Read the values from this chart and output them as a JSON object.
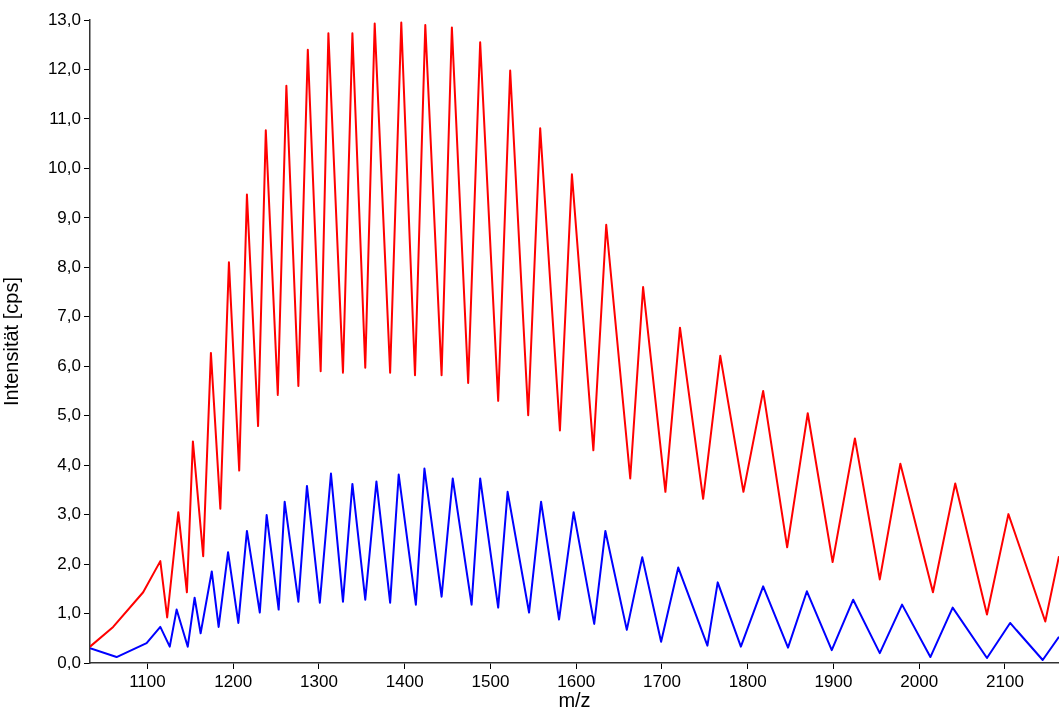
{
  "chart_data": {
    "type": "line",
    "xlabel": "m/z",
    "ylabel": "Intensität [cps]",
    "xlim": [
      1033,
      2163
    ],
    "xticks": [
      1100,
      1200,
      1300,
      1400,
      1500,
      1600,
      1700,
      1800,
      1900,
      2000,
      2100
    ],
    "ylim": [
      0,
      13
    ],
    "yticks": [
      {
        "value": 0,
        "label": "0,0"
      },
      {
        "value": 1,
        "label": "1,0"
      },
      {
        "value": 2,
        "label": "2,0"
      },
      {
        "value": 3,
        "label": "3,0"
      },
      {
        "value": 4,
        "label": "4,0"
      },
      {
        "value": 5,
        "label": "5,0"
      },
      {
        "value": 6,
        "label": "6,0"
      },
      {
        "value": 7,
        "label": "7,0"
      },
      {
        "value": 8,
        "label": "8,0"
      },
      {
        "value": 9,
        "label": "9,0"
      },
      {
        "value": 10,
        "label": "10,0"
      },
      {
        "value": 11,
        "label": "11,0"
      },
      {
        "value": 12,
        "label": "12,0"
      },
      {
        "value": 13,
        "label": "13,0"
      }
    ],
    "grid": false,
    "legend": false,
    "marker": "none",
    "line_style": "solid",
    "series": [
      {
        "color": "#ff0000",
        "x": [
          1033,
          1060,
          1095,
          1115,
          1123,
          1136,
          1146,
          1153,
          1165,
          1174,
          1185,
          1195,
          1207,
          1216,
          1229,
          1238,
          1252,
          1262,
          1276,
          1287,
          1302,
          1311,
          1328,
          1339,
          1354,
          1365,
          1383,
          1396,
          1412,
          1424,
          1443,
          1455,
          1474,
          1488,
          1509,
          1523,
          1544,
          1558,
          1581,
          1595,
          1620,
          1635,
          1663,
          1678,
          1704,
          1721,
          1748,
          1768,
          1795,
          1818,
          1846,
          1870,
          1899,
          1925,
          1954,
          1978,
          2016,
          2042,
          2079,
          2104,
          2147,
          2163
        ],
        "values": [
          0.33,
          0.73,
          1.43,
          2.06,
          0.92,
          3.05,
          1.43,
          4.48,
          2.16,
          6.27,
          3.12,
          8.1,
          3.89,
          9.47,
          4.79,
          10.77,
          5.42,
          11.67,
          5.6,
          12.4,
          5.9,
          12.73,
          5.87,
          12.73,
          5.97,
          12.93,
          5.87,
          12.95,
          5.82,
          12.9,
          5.82,
          12.85,
          5.66,
          12.55,
          5.3,
          11.98,
          5.01,
          10.81,
          4.7,
          9.88,
          4.3,
          8.86,
          3.73,
          7.6,
          3.46,
          6.78,
          3.32,
          6.21,
          3.46,
          5.5,
          2.34,
          5.05,
          2.04,
          4.54,
          1.69,
          4.03,
          1.43,
          3.63,
          0.98,
          3.01,
          0.84,
          2.16
        ]
      },
      {
        "color": "#0000ff",
        "x": [
          1033,
          1064,
          1099,
          1115,
          1126,
          1134,
          1147,
          1155,
          1162,
          1175,
          1183,
          1194,
          1206,
          1216,
          1231,
          1239,
          1253,
          1260,
          1276,
          1286,
          1301,
          1314,
          1328,
          1339,
          1354,
          1367,
          1383,
          1393,
          1413,
          1423,
          1443,
          1456,
          1478,
          1488,
          1509,
          1520,
          1545,
          1559,
          1580,
          1597,
          1621,
          1634,
          1659,
          1677,
          1699,
          1719,
          1753,
          1765,
          1792,
          1818,
          1847,
          1869,
          1898,
          1923,
          1954,
          1980,
          2013,
          2039,
          2079,
          2106,
          2144,
          2163
        ],
        "values": [
          0.3,
          0.12,
          0.4,
          0.73,
          0.33,
          1.08,
          0.33,
          1.32,
          0.6,
          1.85,
          0.73,
          2.24,
          0.81,
          2.67,
          1.02,
          2.99,
          1.08,
          3.26,
          1.24,
          3.58,
          1.22,
          3.83,
          1.24,
          3.62,
          1.28,
          3.67,
          1.22,
          3.81,
          1.18,
          3.93,
          1.34,
          3.73,
          1.18,
          3.73,
          1.12,
          3.46,
          1.02,
          3.26,
          0.88,
          3.05,
          0.79,
          2.67,
          0.67,
          2.14,
          0.43,
          1.93,
          0.35,
          1.63,
          0.33,
          1.55,
          0.31,
          1.45,
          0.26,
          1.28,
          0.2,
          1.18,
          0.12,
          1.12,
          0.1,
          0.81,
          0.06,
          0.53
        ]
      }
    ]
  }
}
